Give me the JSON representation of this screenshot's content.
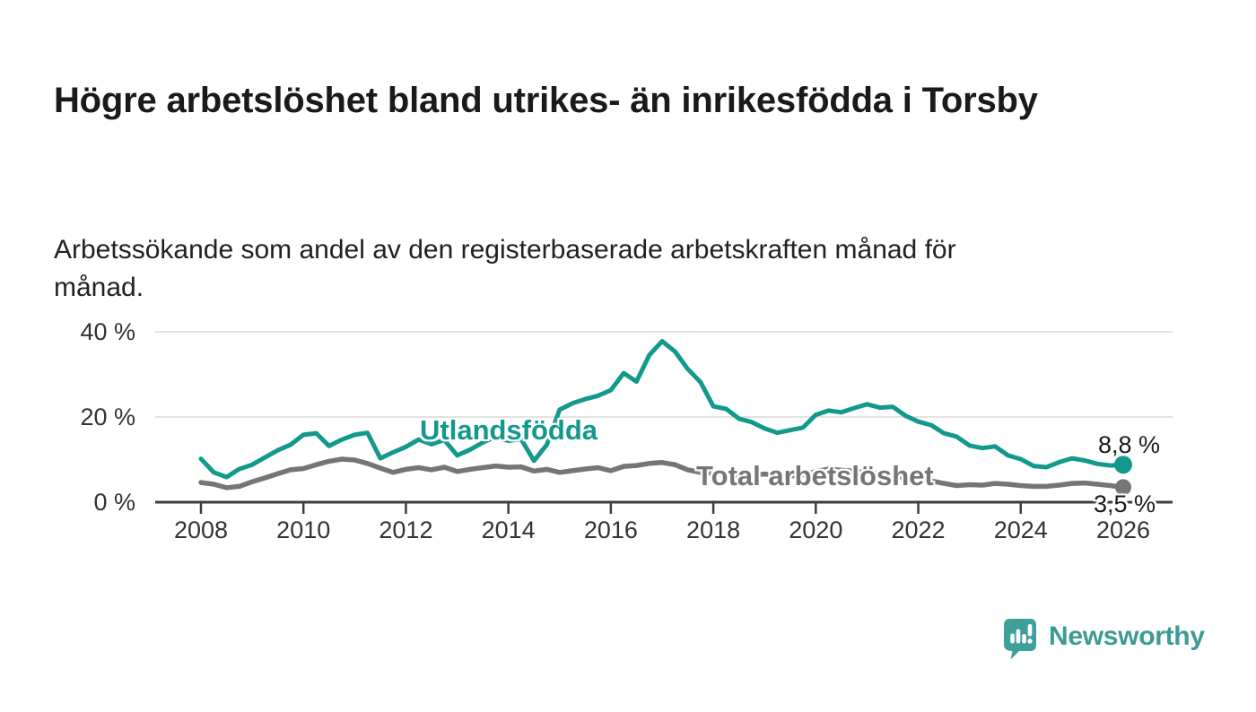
{
  "title": "Högre arbetslöshet bland utrikes- än inrikesfödda i Torsby",
  "subtitle": "Arbetssökande som andel av den registerbaserade arbetskraften månad för månad.",
  "colors": {
    "accent_teal": "#12998b",
    "series_gray": "#757578",
    "axis": "#3d3d3d",
    "gridline": "#d9d9d9",
    "text": "#1a1a1a",
    "tick_label": "#333333",
    "logo_teal": "#3fa099",
    "logo_text_teal": "#3d9b94"
  },
  "chart_data": {
    "type": "line",
    "title": "Högre arbetslöshet bland utrikes- än inrikesfödda i Torsby",
    "subtitle": "Arbetssökande som andel av den registerbaserade arbetskraften månad för månad.",
    "unit": "%",
    "grid": "horizontal",
    "legend_position": "inline",
    "xlim": [
      2007.2,
      2027.0
    ],
    "ylim": [
      0,
      42
    ],
    "yticks": [
      {
        "value": 0,
        "label": "0 %"
      },
      {
        "value": 20,
        "label": "20 %"
      },
      {
        "value": 40,
        "label": "40 %"
      }
    ],
    "xticks": [
      {
        "value": 2008,
        "label": "2008"
      },
      {
        "value": 2010,
        "label": "2010"
      },
      {
        "value": 2012,
        "label": "2012"
      },
      {
        "value": 2014,
        "label": "2014"
      },
      {
        "value": 2016,
        "label": "2016"
      },
      {
        "value": 2018,
        "label": "2018"
      },
      {
        "value": 2020,
        "label": "2020"
      },
      {
        "value": 2022,
        "label": "2022"
      },
      {
        "value": 2024,
        "label": "2024"
      },
      {
        "value": 2026,
        "label": "2026"
      }
    ],
    "x": [
      2008,
      2008.25,
      2008.5,
      2008.75,
      2009,
      2009.25,
      2009.5,
      2009.75,
      2010,
      2010.25,
      2010.5,
      2010.75,
      2011,
      2011.25,
      2011.5,
      2011.75,
      2012,
      2012.25,
      2012.5,
      2012.75,
      2013,
      2013.25,
      2013.5,
      2013.75,
      2014,
      2014.25,
      2014.5,
      2014.75,
      2015,
      2015.25,
      2015.5,
      2015.75,
      2016,
      2016.25,
      2016.5,
      2016.75,
      2017,
      2017.25,
      2017.5,
      2017.75,
      2018,
      2018.25,
      2018.5,
      2018.75,
      2019,
      2019.25,
      2019.5,
      2019.75,
      2020,
      2020.25,
      2020.5,
      2020.75,
      2021,
      2021.25,
      2021.5,
      2021.75,
      2022,
      2022.25,
      2022.5,
      2022.75,
      2023,
      2023.25,
      2023.5,
      2023.75,
      2024,
      2024.25,
      2024.5,
      2024.75,
      2025,
      2025.25,
      2025.5,
      2025.75,
      2026
    ],
    "series": [
      {
        "name": "Utlandsfödda",
        "color": "#12998b",
        "end_label": "8,8 %",
        "end_value": 8.8,
        "values": [
          10.2,
          7.0,
          5.9,
          7.8,
          8.8,
          10.5,
          12.2,
          13.5,
          15.8,
          16.2,
          13.2,
          14.7,
          15.8,
          16.3,
          10.3,
          11.7,
          13.0,
          14.7,
          13.6,
          14.6,
          11.0,
          12.3,
          14.0,
          15.3,
          14.4,
          14.8,
          9.7,
          13.5,
          21.7,
          23.2,
          24.2,
          25.0,
          26.3,
          30.3,
          28.3,
          34.5,
          37.8,
          35.4,
          31.3,
          28.2,
          22.5,
          21.9,
          19.6,
          18.8,
          17.3,
          16.3,
          16.9,
          17.5,
          20.5,
          21.5,
          21.1,
          22.1,
          23.0,
          22.2,
          22.4,
          20.3,
          18.9,
          18.1,
          16.2,
          15.4,
          13.3,
          12.7,
          13.1,
          11.0,
          10.1,
          8.5,
          8.2,
          9.4,
          10.3,
          9.8,
          9.0,
          8.6,
          8.8
        ]
      },
      {
        "name": "Total arbetslöshet",
        "color": "#757578",
        "end_label": "3,5 %",
        "end_value": 3.5,
        "values": [
          4.6,
          4.2,
          3.4,
          3.7,
          4.8,
          5.7,
          6.7,
          7.6,
          7.9,
          8.8,
          9.6,
          10.1,
          9.9,
          9.1,
          8.0,
          7.0,
          7.7,
          8.1,
          7.6,
          8.2,
          7.2,
          7.7,
          8.1,
          8.5,
          8.2,
          8.3,
          7.3,
          7.7,
          7.0,
          7.4,
          7.8,
          8.1,
          7.4,
          8.4,
          8.6,
          9.1,
          9.3,
          8.8,
          7.6,
          7.0,
          6.8,
          6.5,
          6.2,
          6.4,
          6.6,
          6.3,
          6.1,
          6.4,
          7.2,
          7.8,
          7.5,
          7.3,
          7.0,
          6.6,
          6.2,
          5.8,
          5.4,
          5.0,
          4.4,
          3.9,
          4.1,
          4.0,
          4.4,
          4.2,
          3.9,
          3.7,
          3.7,
          4.0,
          4.4,
          4.5,
          4.2,
          3.9,
          3.5
        ]
      }
    ],
    "annotations": {
      "series_label_foreign": "Utlandsfödda",
      "series_label_total": "Total arbetslöshet",
      "end_value_foreign": "8,8 %",
      "end_value_total": "3,5 %"
    }
  },
  "footer": {
    "brand": "Newsworthy"
  }
}
